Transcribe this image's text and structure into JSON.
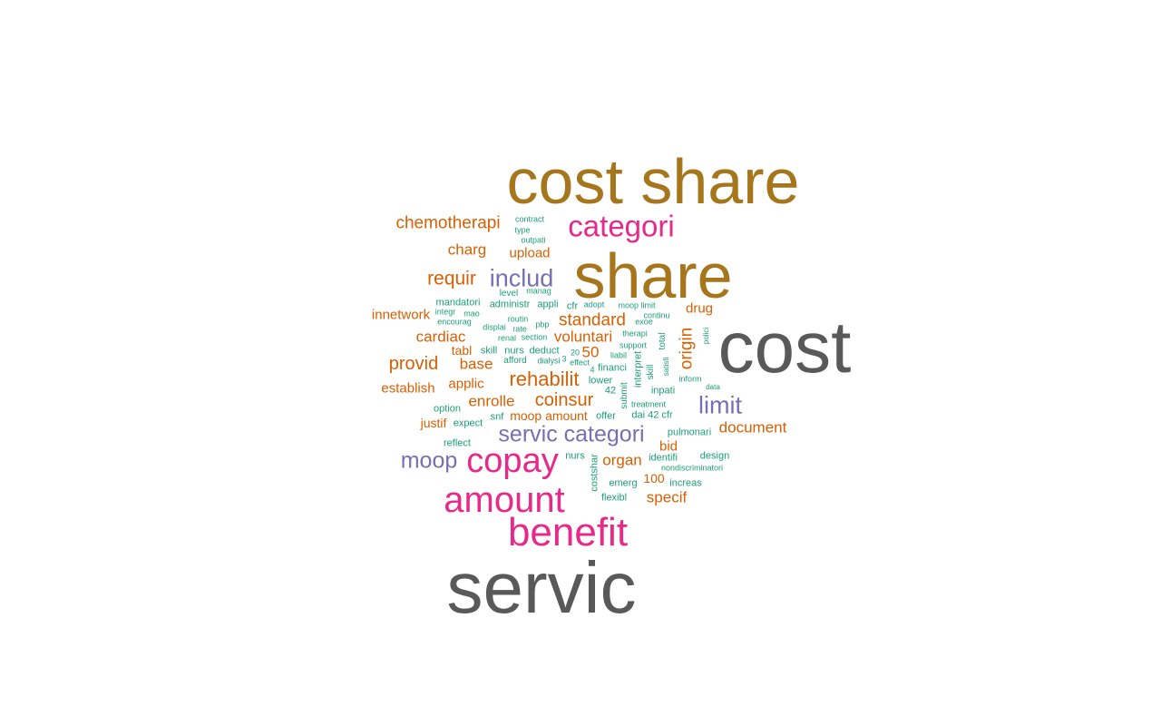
{
  "colors": {
    "gray": "#595959",
    "olive": "#a6761d",
    "pink": "#e7298a",
    "purple": "#7570b3",
    "orange": "#d95f02",
    "teal": "#1b9e77"
  },
  "words": [
    {
      "text": "servic",
      "color": "gray"
    },
    {
      "text": "cost",
      "color": "gray"
    },
    {
      "text": "cost share",
      "color": "olive"
    },
    {
      "text": "share",
      "color": "olive"
    },
    {
      "text": "benefit",
      "color": "pink"
    },
    {
      "text": "amount",
      "color": "pink"
    },
    {
      "text": "copay",
      "color": "pink"
    },
    {
      "text": "categori",
      "color": "pink"
    },
    {
      "text": "servic categori",
      "color": "purple"
    },
    {
      "text": "limit",
      "color": "purple"
    },
    {
      "text": "moop",
      "color": "purple"
    },
    {
      "text": "includ",
      "color": "purple"
    },
    {
      "text": "rehabilit",
      "color": "orange"
    },
    {
      "text": "coinsur",
      "color": "orange"
    },
    {
      "text": "chemotherapi",
      "color": "orange"
    },
    {
      "text": "requir",
      "color": "orange"
    },
    {
      "text": "standard",
      "color": "orange"
    },
    {
      "text": "origin",
      "color": "orange"
    },
    {
      "text": "voluntari",
      "color": "orange"
    },
    {
      "text": "provid",
      "color": "orange"
    },
    {
      "text": "cardiac",
      "color": "orange"
    },
    {
      "text": "base",
      "color": "orange"
    },
    {
      "text": "50",
      "color": "orange"
    },
    {
      "text": "enrolle",
      "color": "orange"
    },
    {
      "text": "document",
      "color": "orange"
    },
    {
      "text": "specif",
      "color": "orange"
    },
    {
      "text": "organ",
      "color": "orange"
    },
    {
      "text": "charg",
      "color": "orange"
    },
    {
      "text": "upload",
      "color": "orange"
    },
    {
      "text": "innetwork",
      "color": "orange"
    },
    {
      "text": "establish",
      "color": "orange"
    },
    {
      "text": "applic",
      "color": "orange"
    },
    {
      "text": "tabl",
      "color": "orange"
    },
    {
      "text": "drug",
      "color": "orange"
    },
    {
      "text": "moop amount",
      "color": "orange"
    },
    {
      "text": "bid",
      "color": "orange"
    },
    {
      "text": "justif",
      "color": "orange"
    },
    {
      "text": "100",
      "color": "orange"
    },
    {
      "text": "contract",
      "color": "teal"
    },
    {
      "text": "type",
      "color": "teal"
    },
    {
      "text": "outpati",
      "color": "teal"
    },
    {
      "text": "level",
      "color": "teal"
    },
    {
      "text": "manag",
      "color": "teal"
    },
    {
      "text": "mandatori",
      "color": "teal"
    },
    {
      "text": "appli",
      "color": "teal"
    },
    {
      "text": "adopt",
      "color": "teal"
    },
    {
      "text": "moop limit",
      "color": "teal"
    },
    {
      "text": "integr",
      "color": "teal"
    },
    {
      "text": "mao",
      "color": "teal"
    },
    {
      "text": "administr",
      "color": "teal"
    },
    {
      "text": "cfr",
      "color": "teal"
    },
    {
      "text": "continu",
      "color": "teal"
    },
    {
      "text": "encourag",
      "color": "teal"
    },
    {
      "text": "routin",
      "color": "teal"
    },
    {
      "text": "pbp",
      "color": "teal"
    },
    {
      "text": "exoe",
      "color": "teal"
    },
    {
      "text": "displai",
      "color": "teal"
    },
    {
      "text": "rate",
      "color": "teal"
    },
    {
      "text": "therapi",
      "color": "teal"
    },
    {
      "text": "renal",
      "color": "teal"
    },
    {
      "text": "section",
      "color": "teal"
    },
    {
      "text": "total",
      "color": "teal"
    },
    {
      "text": "polici",
      "color": "teal"
    },
    {
      "text": "skill",
      "color": "teal"
    },
    {
      "text": "nurs",
      "color": "teal"
    },
    {
      "text": "deduct",
      "color": "teal"
    },
    {
      "text": "20",
      "color": "teal"
    },
    {
      "text": "support",
      "color": "teal"
    },
    {
      "text": "liabil",
      "color": "teal"
    },
    {
      "text": "afford",
      "color": "teal"
    },
    {
      "text": "dialysi",
      "color": "teal"
    },
    {
      "text": "3",
      "color": "teal"
    },
    {
      "text": "effect",
      "color": "teal"
    },
    {
      "text": "4",
      "color": "teal"
    },
    {
      "text": "financi",
      "color": "teal"
    },
    {
      "text": "interpret",
      "color": "teal"
    },
    {
      "text": "skill",
      "color": "teal"
    },
    {
      "text": "satisfi",
      "color": "teal"
    },
    {
      "text": "lower",
      "color": "teal"
    },
    {
      "text": "submit",
      "color": "teal"
    },
    {
      "text": "inform",
      "color": "teal"
    },
    {
      "text": "42",
      "color": "teal"
    },
    {
      "text": "inpati",
      "color": "teal"
    },
    {
      "text": "data",
      "color": "teal"
    },
    {
      "text": "treatment",
      "color": "teal"
    },
    {
      "text": "option",
      "color": "teal"
    },
    {
      "text": "snf",
      "color": "teal"
    },
    {
      "text": "offer",
      "color": "teal"
    },
    {
      "text": "dai 42 cfr",
      "color": "teal"
    },
    {
      "text": "expect",
      "color": "teal"
    },
    {
      "text": "pulmonari",
      "color": "teal"
    },
    {
      "text": "reflect",
      "color": "teal"
    },
    {
      "text": "nurs",
      "color": "teal"
    },
    {
      "text": "identifi",
      "color": "teal"
    },
    {
      "text": "design",
      "color": "teal"
    },
    {
      "text": "nondiscriminatori",
      "color": "teal"
    },
    {
      "text": "costshar",
      "color": "teal"
    },
    {
      "text": "emerg",
      "color": "teal"
    },
    {
      "text": "increas",
      "color": "teal"
    },
    {
      "text": "flexibl",
      "color": "teal"
    }
  ]
}
